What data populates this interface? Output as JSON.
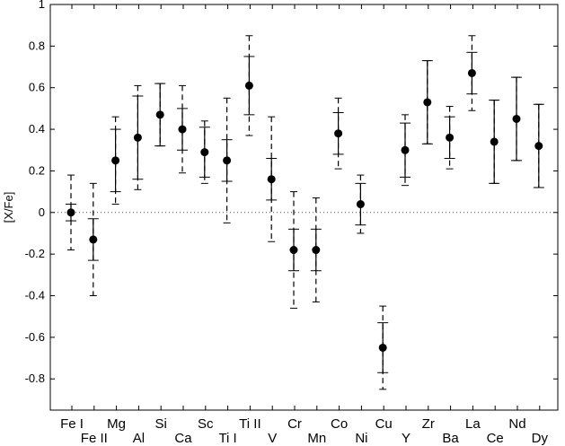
{
  "chart_data": {
    "type": "scatter",
    "title": "",
    "xlabel": "",
    "ylabel": "[X/Fe]",
    "ylim": [
      -0.95,
      1.0
    ],
    "yticks": [
      -0.8,
      -0.6,
      -0.4,
      -0.2,
      0,
      0.2,
      0.4,
      0.6,
      0.8,
      1
    ],
    "ytick_labels": [
      "-0.8",
      "-0.6",
      "-0.4",
      "-0.2",
      "0",
      "0.2",
      "0.4",
      "0.6",
      "0.8",
      "1"
    ],
    "reference_line": 0,
    "grid": false,
    "categories": [
      "Fe I",
      "Fe II",
      "Mg",
      "Al",
      "Si",
      "Ca",
      "Sc",
      "Ti I",
      "Ti II",
      "V",
      "Cr",
      "Mn",
      "Co",
      "Ni",
      "Cu",
      "Y",
      "Zr",
      "Ba",
      "La",
      "Ce",
      "Nd",
      "Dy"
    ],
    "label_row": [
      "upper",
      "lower",
      "upper",
      "lower",
      "upper",
      "lower",
      "upper",
      "lower",
      "upper",
      "lower",
      "upper",
      "lower",
      "upper",
      "lower",
      "upper",
      "lower",
      "upper",
      "lower",
      "upper",
      "lower",
      "upper",
      "lower"
    ],
    "series": [
      {
        "values": [
          0.0,
          -0.13,
          0.25,
          0.36,
          0.47,
          0.4,
          0.29,
          0.25,
          0.61,
          0.16,
          -0.18,
          -0.18,
          0.38,
          0.04,
          -0.65,
          0.3,
          0.53,
          0.36,
          0.67,
          0.34,
          0.45,
          0.32
        ],
        "err_solid": [
          0.04,
          0.1,
          0.15,
          0.2,
          0.15,
          0.1,
          0.12,
          0.1,
          0.14,
          0.1,
          0.1,
          0.1,
          0.1,
          0.1,
          0.12,
          0.13,
          0.2,
          0.1,
          0.1,
          0.2,
          0.2,
          0.2
        ],
        "err_dashed": [
          0.18,
          0.27,
          0.21,
          0.25,
          0.15,
          0.21,
          0.15,
          0.3,
          0.24,
          0.3,
          0.28,
          0.25,
          0.17,
          0.14,
          0.2,
          0.17,
          0.2,
          0.15,
          0.18,
          0.2,
          0.2,
          0.2
        ]
      }
    ]
  }
}
